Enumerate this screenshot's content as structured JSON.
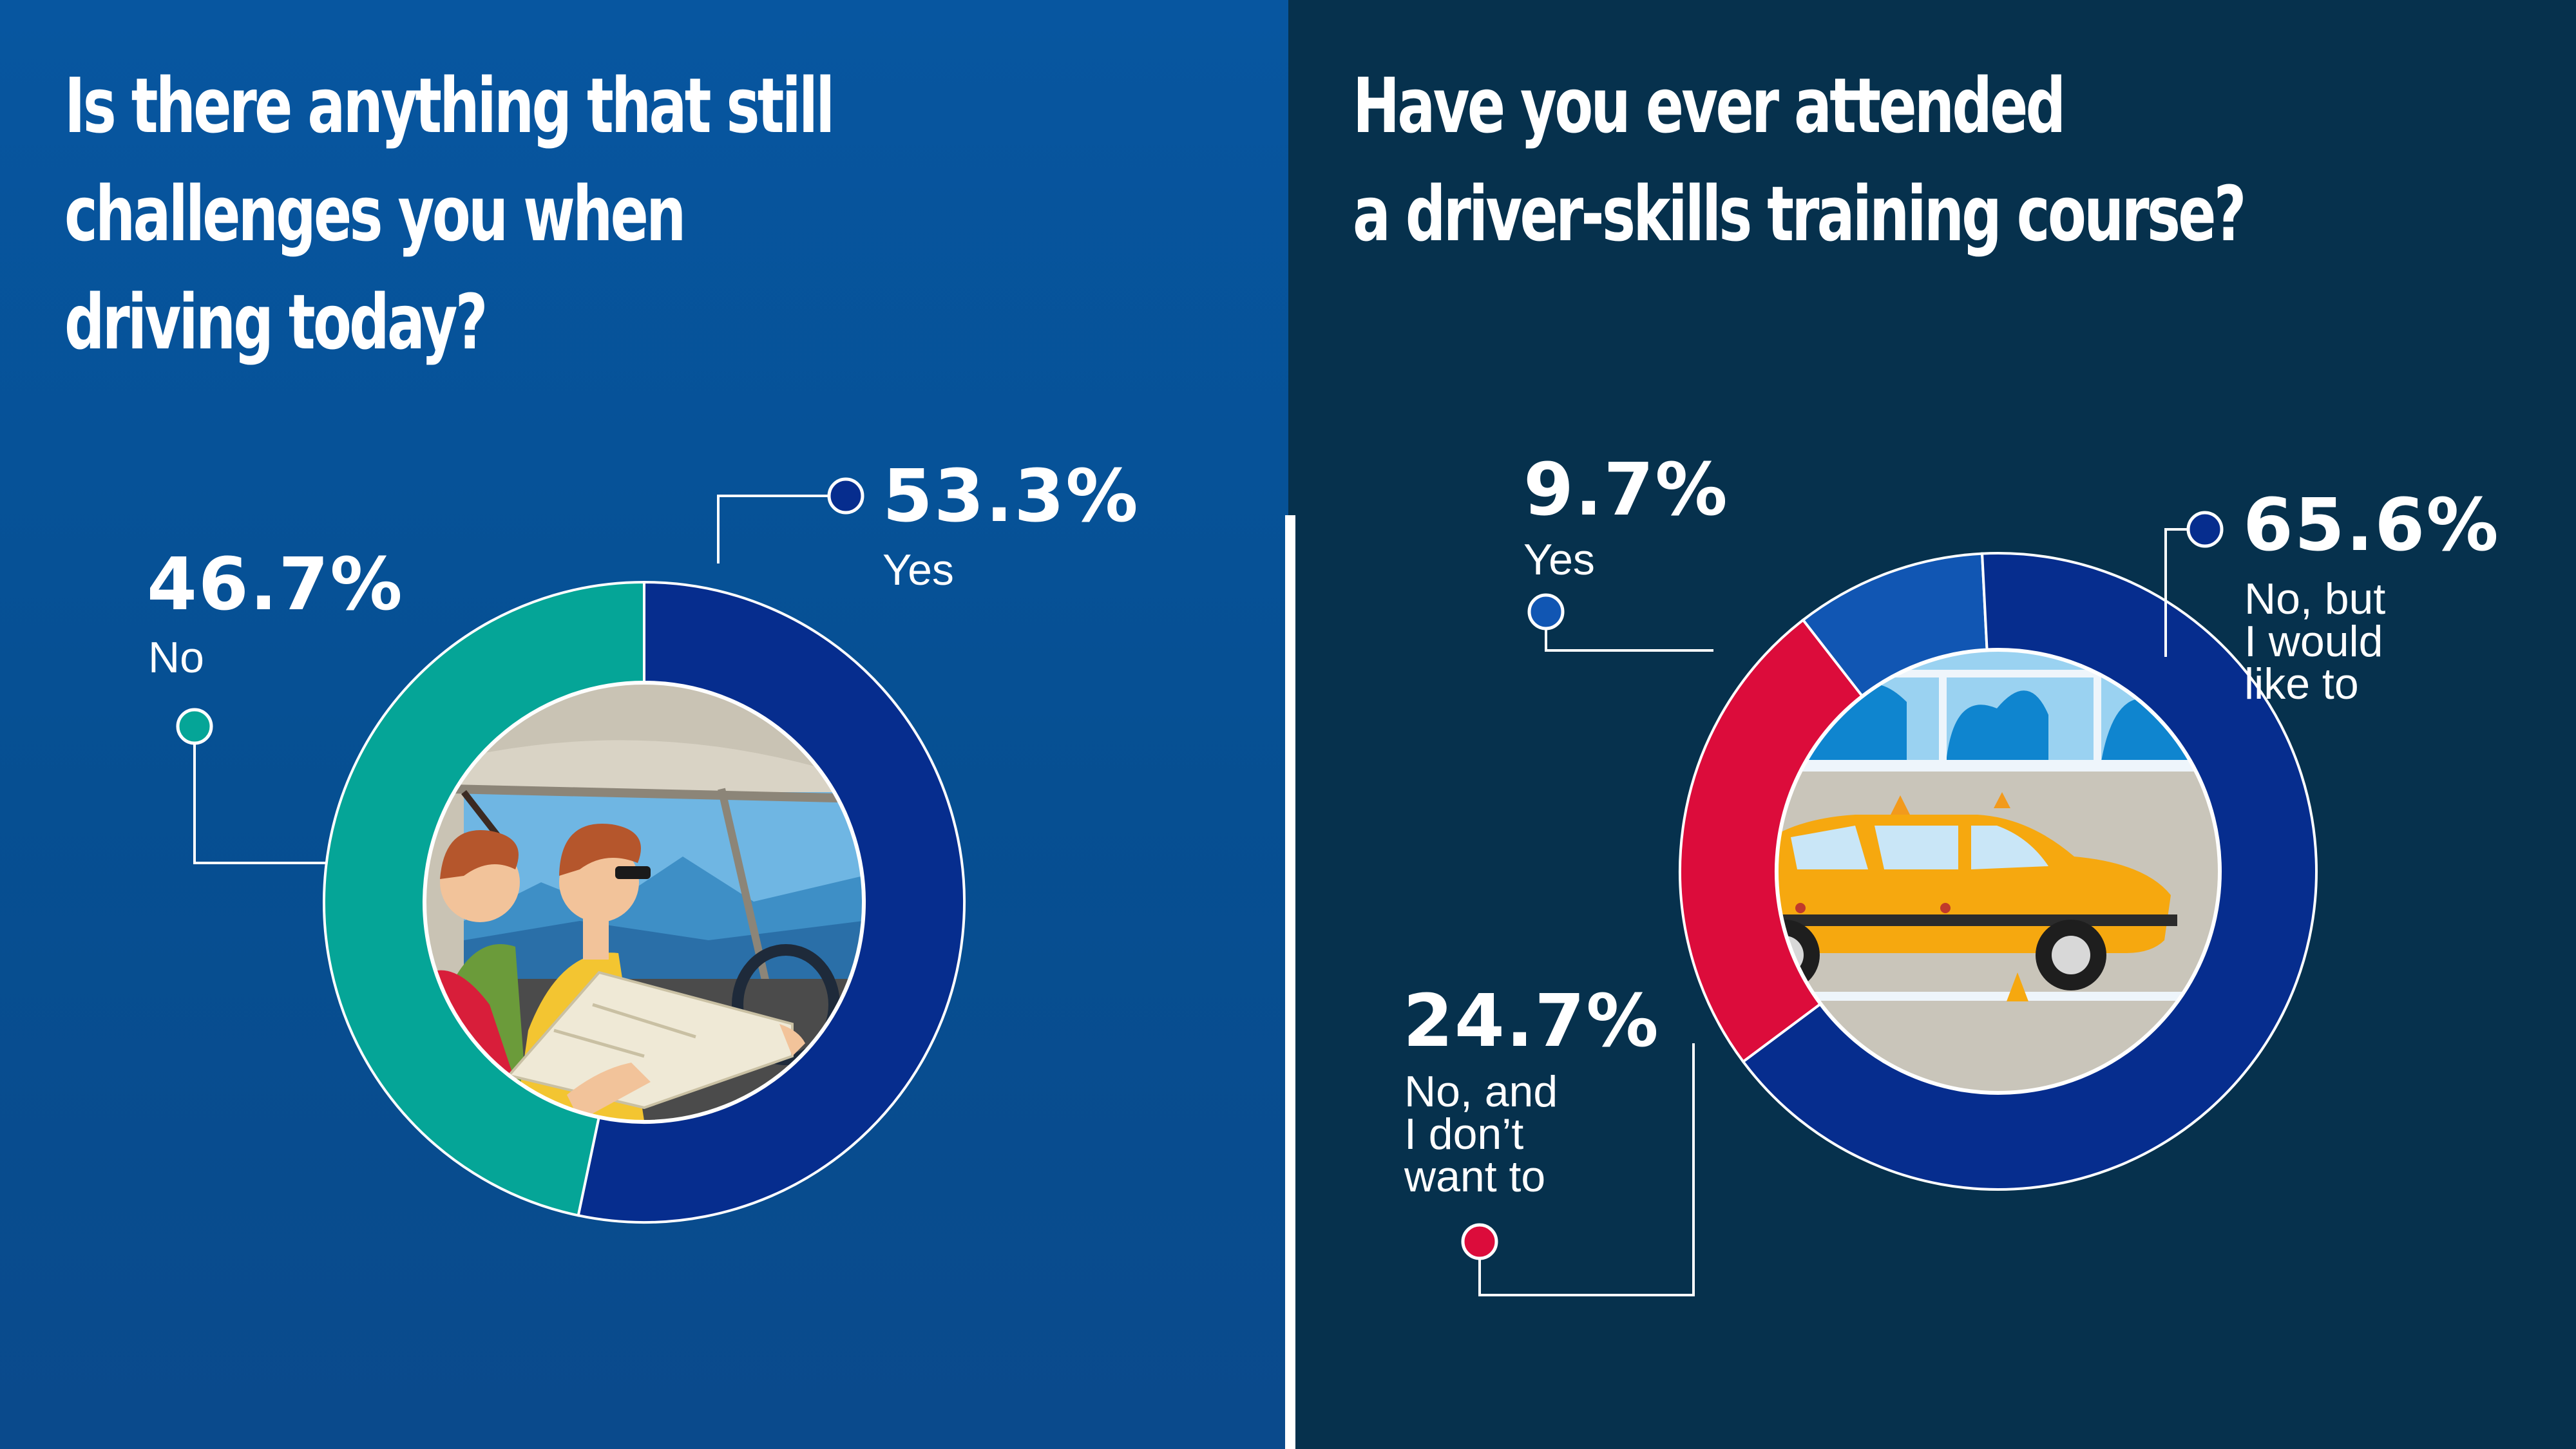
{
  "colors": {
    "left_bg": "#0756a0",
    "right_bg": "#06314d",
    "navy": "#062d8e",
    "teal": "#05a597",
    "mid_blue": "#1156b3",
    "red": "#dc0c3b",
    "line": "#ffffff"
  },
  "left": {
    "title_lines": [
      "Is there anything that still",
      "challenges you when",
      "driving today?"
    ],
    "illustration": "couple-driving-with-map-illustration"
  },
  "right": {
    "title_lines": [
      "Have you ever attended",
      "a driver-skills training course?"
    ],
    "illustration": "yellow-driving-school-car-illustration"
  },
  "chart_data": [
    {
      "type": "pie",
      "donut": true,
      "title": "Is there anything that still challenges you when driving today?",
      "categories": [
        "Yes",
        "No"
      ],
      "values": [
        53.3,
        46.7
      ],
      "value_labels": [
        "53.3%",
        "46.7%"
      ],
      "colors": [
        "#062d8e",
        "#05a597"
      ]
    },
    {
      "type": "pie",
      "donut": true,
      "title": "Have you ever attended a driver-skills training course?",
      "categories": [
        "Yes",
        "No, but I would like to",
        "No, and I don’t want to"
      ],
      "values": [
        9.7,
        65.6,
        24.7
      ],
      "value_labels": [
        "9.7%",
        "65.6%",
        "24.7%"
      ],
      "display_labels": [
        "Yes",
        "No, but\nI would\nlike to",
        "No, and\nI don’t\nwant to"
      ],
      "colors": [
        "#1156b3",
        "#062d8e",
        "#dc0c3b"
      ]
    }
  ]
}
